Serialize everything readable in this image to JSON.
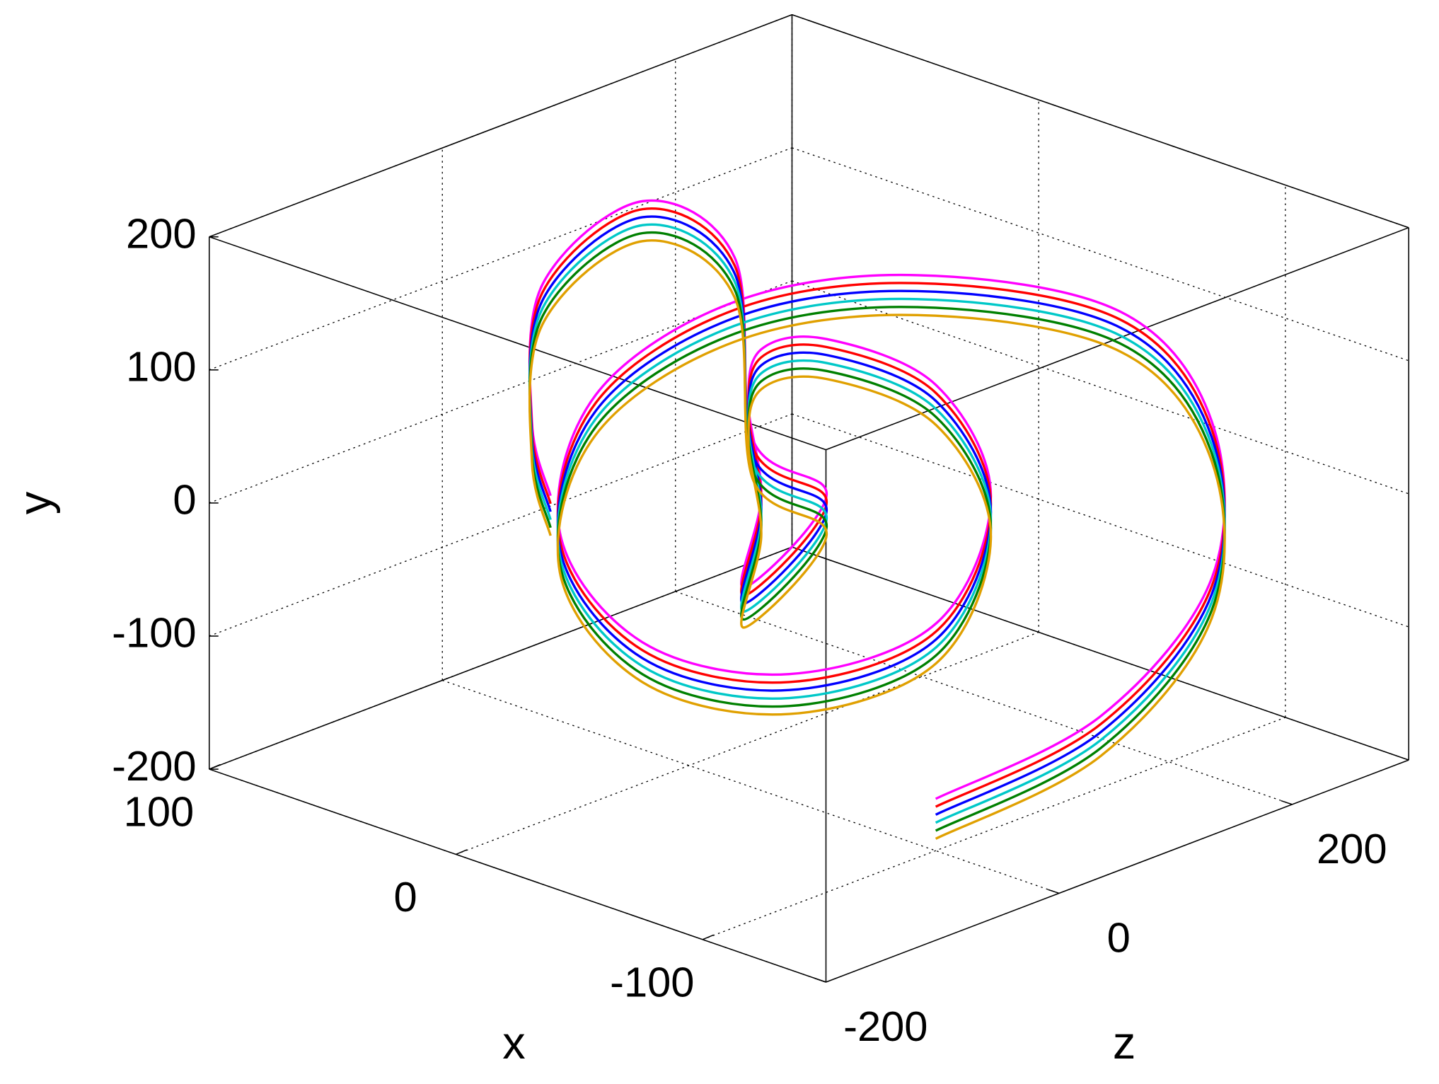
{
  "chart_data": {
    "type": "line3d",
    "x_label": "x",
    "y_label": "y",
    "z_label": "z",
    "xlim": [
      -150,
      100
    ],
    "ylim": [
      -200,
      200
    ],
    "zlim": [
      -200,
      300
    ],
    "xticks": [
      -100,
      0,
      100
    ],
    "yticks": [
      -200,
      -100,
      0,
      100,
      200
    ],
    "zticks": [
      -200,
      0,
      200
    ],
    "grid": true,
    "series": [
      {
        "color": "#ff00ff",
        "x": [
          -100,
          -100,
          -100,
          -100,
          -50,
          0,
          50,
          50,
          50,
          0,
          0,
          0,
          0,
          0,
          0,
          0,
          0,
          0,
          0,
          0,
          0,
          0,
          50,
          50,
          50,
          50
        ],
        "y": [
          -161,
          -146,
          -74,
          43,
          85,
          103,
          68,
          38,
          -55,
          -94,
          -160,
          -164,
          -84,
          15,
          81,
          92,
          55,
          -18,
          -82,
          -36,
          26,
          169,
          170,
          136,
          36,
          -25
        ],
        "z": [
          0,
          142,
          237,
          237,
          264,
          196,
          145,
          26,
          -5,
          -40,
          86,
          212,
          259,
          212,
          118,
          62,
          51,
          62,
          47,
          118,
          55,
          39,
          66,
          -20,
          -29,
          -13
        ]
      },
      {
        "color": "#ff0000",
        "x": [
          -100,
          -100,
          -100,
          -100,
          -50,
          0,
          50,
          50,
          50,
          0,
          0,
          0,
          0,
          0,
          0,
          0,
          0,
          0,
          0,
          0,
          0,
          0,
          50,
          50,
          50,
          50
        ],
        "y": [
          -167,
          -152,
          -80,
          37,
          79,
          97,
          62,
          32,
          -61,
          -100,
          -166,
          -170,
          -90,
          9,
          75,
          86,
          49,
          -24,
          -88,
          -42,
          20,
          163,
          164,
          130,
          30,
          -31
        ],
        "z": [
          0,
          142,
          237,
          237,
          264,
          196,
          145,
          26,
          -5,
          -40,
          86,
          212,
          259,
          212,
          118,
          62,
          51,
          62,
          47,
          118,
          55,
          39,
          66,
          -20,
          -29,
          -13
        ]
      },
      {
        "color": "#0000ff",
        "x": [
          -100,
          -100,
          -100,
          -100,
          -50,
          0,
          50,
          50,
          50,
          0,
          0,
          0,
          0,
          0,
          0,
          0,
          0,
          0,
          0,
          0,
          0,
          0,
          50,
          50,
          50,
          50
        ],
        "y": [
          -173,
          -158,
          -86,
          31,
          73,
          91,
          56,
          26,
          -67,
          -106,
          -172,
          -176,
          -96,
          3,
          69,
          80,
          43,
          -30,
          -94,
          -48,
          14,
          157,
          158,
          124,
          24,
          -37
        ],
        "z": [
          0,
          142,
          237,
          237,
          264,
          196,
          145,
          26,
          -5,
          -40,
          86,
          212,
          259,
          212,
          118,
          62,
          51,
          62,
          47,
          118,
          55,
          39,
          66,
          -20,
          -29,
          -13
        ]
      },
      {
        "color": "#00c8c8",
        "x": [
          -100,
          -100,
          -100,
          -100,
          -50,
          0,
          50,
          50,
          50,
          0,
          0,
          0,
          0,
          0,
          0,
          0,
          0,
          0,
          0,
          0,
          0,
          0,
          50,
          50,
          50,
          50
        ],
        "y": [
          -179,
          -164,
          -92,
          25,
          67,
          85,
          50,
          20,
          -73,
          -112,
          -178,
          -182,
          -102,
          -3,
          63,
          74,
          37,
          -36,
          -100,
          -54,
          8,
          151,
          152,
          118,
          18,
          -43
        ],
        "z": [
          0,
          142,
          237,
          237,
          264,
          196,
          145,
          26,
          -5,
          -40,
          86,
          212,
          259,
          212,
          118,
          62,
          51,
          62,
          47,
          118,
          55,
          39,
          66,
          -20,
          -29,
          -13
        ]
      },
      {
        "color": "#008000",
        "x": [
          -100,
          -100,
          -100,
          -100,
          -50,
          0,
          50,
          50,
          50,
          0,
          0,
          0,
          0,
          0,
          0,
          0,
          0,
          0,
          0,
          0,
          0,
          0,
          50,
          50,
          50,
          50
        ],
        "y": [
          -185,
          -170,
          -98,
          19,
          61,
          79,
          44,
          14,
          -79,
          -118,
          -184,
          -188,
          -108,
          -9,
          57,
          68,
          31,
          -42,
          -106,
          -60,
          2,
          145,
          146,
          112,
          12,
          -49
        ],
        "z": [
          0,
          142,
          237,
          237,
          264,
          196,
          145,
          26,
          -5,
          -40,
          86,
          212,
          259,
          212,
          118,
          62,
          51,
          62,
          47,
          118,
          55,
          39,
          66,
          -20,
          -29,
          -13
        ]
      },
      {
        "color": "#e0a000",
        "x": [
          -100,
          -100,
          -100,
          -100,
          -50,
          0,
          50,
          50,
          50,
          0,
          0,
          0,
          0,
          0,
          0,
          0,
          0,
          0,
          0,
          0,
          0,
          0,
          50,
          50,
          50,
          50
        ],
        "y": [
          -191,
          -176,
          -104,
          13,
          55,
          73,
          38,
          8,
          -85,
          -124,
          -190,
          -194,
          -114,
          -15,
          51,
          62,
          25,
          -48,
          -112,
          -66,
          -4,
          139,
          140,
          106,
          6,
          -55
        ],
        "z": [
          0,
          142,
          237,
          237,
          264,
          196,
          145,
          26,
          -5,
          -40,
          86,
          212,
          259,
          212,
          118,
          62,
          51,
          62,
          47,
          118,
          55,
          39,
          66,
          -20,
          -29,
          -13
        ]
      }
    ]
  }
}
